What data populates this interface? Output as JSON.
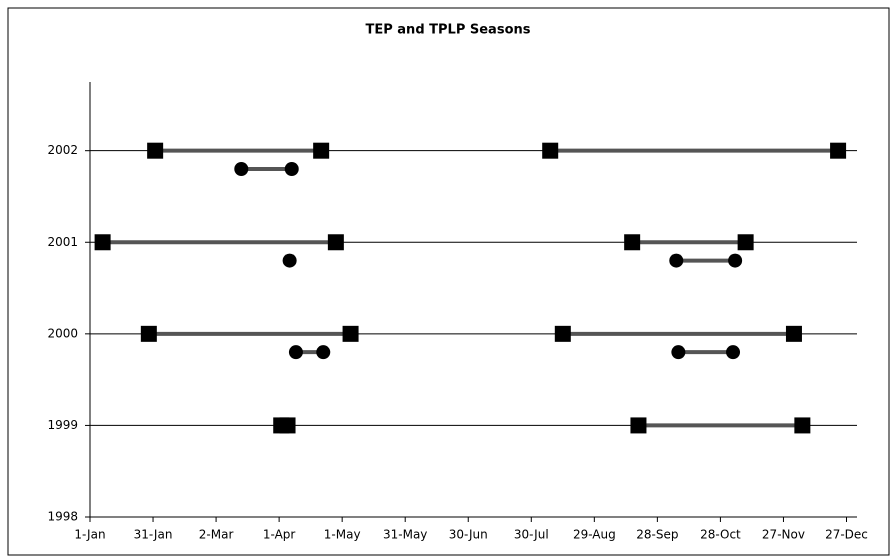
{
  "chart_data": {
    "type": "segments",
    "title": "TEP and TPLP Seasons",
    "xlim": [
      1,
      366
    ],
    "xticks": [
      {
        "value": 1,
        "label": "1-Jan"
      },
      {
        "value": 31,
        "label": "31-Jan"
      },
      {
        "value": 61,
        "label": "2-Mar"
      },
      {
        "value": 91,
        "label": "1-Apr"
      },
      {
        "value": 121,
        "label": "1-May"
      },
      {
        "value": 151,
        "label": "31-May"
      },
      {
        "value": 181,
        "label": "30-Jun"
      },
      {
        "value": 211,
        "label": "30-Jul"
      },
      {
        "value": 241,
        "label": "29-Aug"
      },
      {
        "value": 271,
        "label": "28-Sep"
      },
      {
        "value": 301,
        "label": "28-Oct"
      },
      {
        "value": 331,
        "label": "27-Nov"
      },
      {
        "value": 361,
        "label": "27-Dec"
      }
    ],
    "ylim": [
      1998,
      2002.75
    ],
    "yticks": [
      1998,
      1999,
      2000,
      2001,
      2002
    ],
    "grid": true,
    "series": [
      {
        "marker": "square",
        "color": "#000000",
        "line_color": "#555555",
        "segments": [
          {
            "y": 2002,
            "x": [
              32,
              111
            ]
          },
          {
            "y": 2002,
            "x": [
              220,
              357
            ]
          },
          {
            "y": 2001,
            "x": [
              7,
              118
            ]
          },
          {
            "y": 2001,
            "x": [
              259,
              313
            ]
          },
          {
            "y": 2000,
            "x": [
              29,
              125
            ]
          },
          {
            "y": 2000,
            "x": [
              226,
              336
            ]
          },
          {
            "y": 1999,
            "x": [
              92,
              95
            ]
          },
          {
            "y": 1999,
            "x": [
              262,
              340
            ]
          }
        ]
      },
      {
        "marker": "circle",
        "color": "#000000",
        "line_color": "#555555",
        "segments": [
          {
            "y": 2001.8,
            "x": [
              73,
              97
            ]
          },
          {
            "y": 2000.8,
            "x": [
              96
            ]
          },
          {
            "y": 2000.8,
            "x": [
              280,
              308
            ]
          },
          {
            "y": 1999.8,
            "x": [
              99,
              112
            ]
          },
          {
            "y": 1999.8,
            "x": [
              281,
              307
            ]
          }
        ]
      }
    ]
  }
}
